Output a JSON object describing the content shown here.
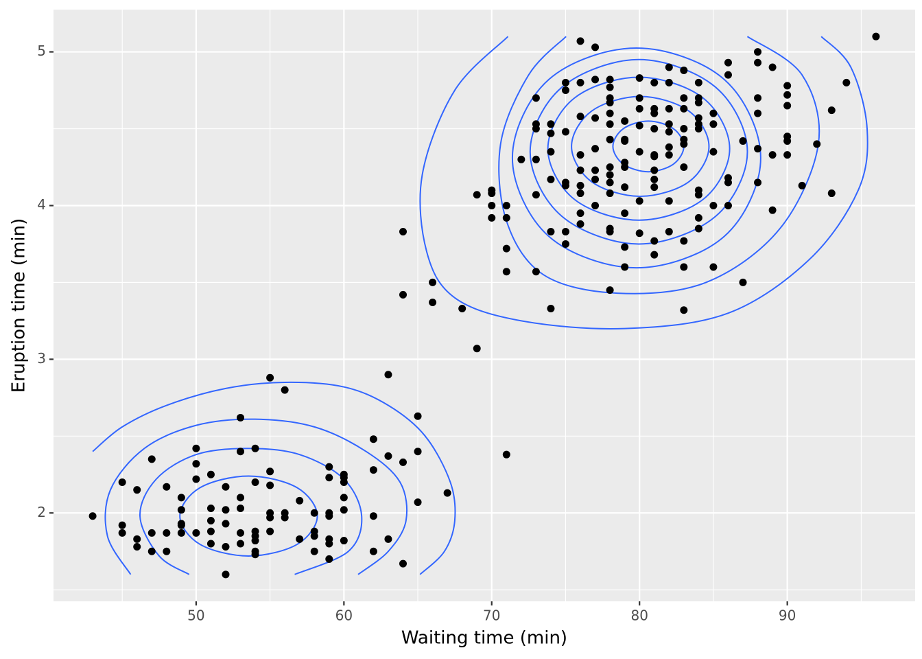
{
  "chart_data": {
    "type": "scatter",
    "xlabel": "Waiting time (min)",
    "ylabel": "Eruption time (min)",
    "xlim": [
      40.35,
      98.65
    ],
    "ylim": [
      1.425,
      5.275
    ],
    "xticks": [
      50,
      60,
      70,
      80,
      90
    ],
    "yticks": [
      2,
      3,
      4,
      5
    ],
    "xminorticks": [
      45,
      55,
      65,
      75,
      85,
      95
    ],
    "yminorticks": [
      1.5,
      2.5,
      3.5,
      4.5
    ],
    "grid": true,
    "color": "#000000",
    "contour_color": "#3366ff",
    "x": [
      43,
      45,
      45,
      45,
      46,
      46,
      46,
      47,
      47,
      47,
      48,
      48,
      48,
      49,
      49,
      49,
      49,
      49,
      50,
      50,
      50,
      50,
      51,
      51,
      51,
      51,
      51,
      52,
      52,
      52,
      52,
      52,
      53,
      53,
      53,
      53,
      53,
      53,
      54,
      54,
      54,
      54,
      54,
      54,
      54,
      55,
      55,
      55,
      55,
      55,
      55,
      56,
      56,
      56,
      57,
      57,
      58,
      58,
      58,
      58,
      59,
      59,
      59,
      59,
      59,
      59,
      59,
      60,
      60,
      60,
      60,
      60,
      60,
      62,
      62,
      62,
      62,
      63,
      63,
      63,
      64,
      64,
      65,
      65,
      65,
      67,
      71,
      64,
      64,
      66,
      66,
      68,
      69,
      69,
      70,
      70,
      70,
      70,
      71,
      71,
      71,
      71,
      72,
      73,
      73,
      73,
      73,
      73,
      73,
      74,
      74,
      74,
      74,
      74,
      74,
      75,
      75,
      75,
      75,
      75,
      75,
      75,
      76,
      76,
      76,
      76,
      76,
      76,
      76,
      76,
      76,
      77,
      77,
      77,
      77,
      77,
      77,
      77,
      78,
      78,
      78,
      78,
      78,
      78,
      78,
      78,
      78,
      78,
      78,
      78,
      78,
      78,
      79,
      79,
      79,
      79,
      79,
      79,
      79,
      79,
      79,
      80,
      80,
      80,
      80,
      80,
      80,
      80,
      81,
      81,
      81,
      81,
      81,
      81,
      81,
      81,
      81,
      81,
      81,
      82,
      82,
      82,
      82,
      82,
      82,
      82,
      82,
      82,
      83,
      83,
      83,
      83,
      83,
      83,
      83,
      83,
      83,
      83,
      84,
      84,
      84,
      84,
      84,
      84,
      84,
      84,
      84,
      84,
      85,
      85,
      85,
      85,
      85,
      86,
      86,
      86,
      86,
      86,
      87,
      87,
      88,
      88,
      88,
      88,
      88,
      88,
      89,
      89,
      89,
      90,
      90,
      90,
      90,
      90,
      90,
      91,
      92,
      93,
      93,
      94,
      96
    ],
    "values": [
      1.98,
      2.2,
      1.92,
      1.87,
      2.15,
      1.83,
      1.78,
      2.35,
      1.87,
      1.75,
      2.17,
      1.87,
      1.75,
      2.1,
      2.02,
      1.93,
      1.92,
      1.87,
      2.42,
      2.32,
      2.22,
      1.87,
      2.25,
      2.03,
      1.95,
      1.88,
      1.8,
      2.17,
      2.02,
      1.93,
      1.78,
      1.6,
      2.62,
      2.4,
      2.1,
      2.03,
      1.87,
      1.8,
      2.42,
      2.2,
      1.88,
      1.85,
      1.82,
      1.75,
      1.73,
      2.88,
      2.27,
      2.18,
      2.0,
      1.97,
      1.88,
      2.8,
      2.0,
      1.97,
      2.08,
      1.83,
      2.0,
      1.88,
      1.85,
      1.75,
      2.3,
      2.23,
      2.0,
      1.98,
      1.83,
      1.8,
      1.7,
      2.25,
      2.23,
      2.2,
      2.1,
      2.02,
      1.82,
      2.48,
      2.28,
      1.98,
      1.75,
      2.9,
      2.37,
      1.83,
      2.33,
      1.67,
      2.63,
      2.4,
      2.07,
      2.13,
      2.38,
      3.83,
      3.42,
      3.5,
      3.37,
      3.33,
      3.07,
      4.07,
      4.1,
      4.08,
      4.0,
      3.92,
      4.0,
      3.92,
      3.72,
      3.57,
      4.3,
      4.7,
      4.53,
      4.5,
      4.3,
      4.07,
      3.57,
      4.53,
      4.47,
      4.35,
      4.17,
      3.83,
      3.33,
      4.8,
      4.75,
      4.48,
      4.15,
      4.13,
      3.83,
      3.75,
      5.07,
      4.8,
      4.58,
      4.33,
      4.23,
      4.13,
      4.08,
      3.95,
      3.88,
      5.03,
      4.82,
      4.57,
      4.37,
      4.23,
      4.17,
      4.0,
      4.82,
      4.77,
      4.7,
      4.67,
      4.6,
      4.53,
      4.43,
      4.25,
      4.2,
      4.15,
      4.08,
      3.85,
      3.83,
      3.45,
      4.55,
      4.43,
      4.42,
      4.28,
      4.25,
      4.12,
      3.95,
      3.73,
      3.6,
      4.83,
      4.7,
      4.63,
      4.52,
      4.35,
      4.03,
      3.82,
      4.8,
      4.63,
      4.6,
      4.5,
      4.33,
      4.32,
      4.23,
      4.17,
      4.12,
      3.77,
      3.68,
      4.9,
      4.8,
      4.63,
      4.53,
      4.48,
      4.38,
      4.33,
      4.03,
      3.83,
      4.88,
      4.7,
      4.63,
      4.5,
      4.43,
      4.4,
      4.25,
      3.77,
      3.6,
      3.32,
      4.8,
      4.7,
      4.67,
      4.57,
      4.53,
      4.5,
      4.1,
      4.07,
      3.92,
      3.85,
      4.6,
      4.53,
      4.35,
      4.0,
      3.6,
      4.93,
      4.85,
      4.18,
      4.15,
      4.0,
      4.42,
      3.5,
      5.0,
      4.93,
      4.7,
      4.6,
      4.37,
      4.15,
      4.9,
      4.33,
      3.97,
      4.78,
      4.72,
      4.65,
      4.45,
      4.42,
      4.33,
      4.13,
      4.4,
      4.62,
      4.08,
      4.8,
      5.1
    ],
    "contours": [
      {
        "closed": true,
        "x": [
          83,
          82.3,
          80.6,
          78.9,
          78.2,
          78.9,
          80.6,
          82.3
        ],
        "y": [
          4.385,
          4.5,
          4.55,
          4.5,
          4.385,
          4.27,
          4.22,
          4.27
        ]
      },
      {
        "closed": true,
        "x": [
          84.7,
          83.34,
          80.05,
          76.76,
          75.4,
          76.76,
          80.05,
          83.34
        ],
        "y": [
          4.385,
          4.615,
          4.71,
          4.615,
          4.385,
          4.155,
          4.06,
          4.155
        ]
      },
      {
        "closed": true,
        "x": [
          86.1,
          84.3,
          79.95,
          75.6,
          73.8,
          75.6,
          79.95,
          84.3
        ],
        "y": [
          4.37,
          4.7,
          4.835,
          4.7,
          4.37,
          4.04,
          3.905,
          4.04
        ]
      },
      {
        "closed": true,
        "x": [
          87.3,
          85.15,
          79.95,
          74.75,
          72.6,
          74.75,
          79.95,
          85.15
        ],
        "y": [
          4.35,
          4.77,
          4.95,
          4.77,
          4.35,
          3.93,
          3.75,
          3.93
        ]
      },
      {
        "closed": true,
        "x": [
          88.2,
          85.74,
          79.8,
          73.86,
          71.4,
          73.86,
          79.8,
          85.74
        ],
        "y": [
          4.31,
          4.82,
          5.025,
          4.82,
          4.31,
          3.8,
          3.595,
          3.8
        ]
      },
      {
        "closed": false,
        "x": [
          75.03,
          72.5,
          70.6,
          71,
          73.5,
          78.5,
          84.5,
          89.5,
          92.1,
          91,
          87.3
        ],
        "y": [
          5.1,
          4.85,
          4.4,
          3.9,
          3.55,
          3.43,
          3.5,
          3.85,
          4.4,
          4.85,
          5.1
        ]
      },
      {
        "closed": false,
        "x": [
          71.1,
          67.5,
          65.3,
          65.6,
          67.5,
          72,
          79,
          86,
          91.5,
          94.8,
          95.4,
          94.3,
          92.3
        ],
        "y": [
          5.1,
          4.75,
          4.2,
          3.7,
          3.4,
          3.25,
          3.2,
          3.3,
          3.65,
          4.1,
          4.5,
          4.9,
          5.1
        ]
      },
      {
        "closed": true,
        "x": [
          58.2,
          56.84,
          53.55,
          50.26,
          48.9,
          50.26,
          53.55,
          56.84
        ],
        "y": [
          1.98,
          2.164,
          2.24,
          2.164,
          1.98,
          1.796,
          1.72,
          1.796
        ]
      },
      {
        "closed": false,
        "x": [
          49.53,
          47.5,
          46.2,
          47.3,
          50,
          53.5,
          57,
          60,
          61.2,
          60.3,
          56.67
        ],
        "y": [
          1.6,
          1.72,
          1.98,
          2.22,
          2.38,
          2.42,
          2.38,
          2.22,
          1.98,
          1.75,
          1.6
        ]
      },
      {
        "closed": false,
        "x": [
          45.57,
          44,
          44.2,
          46.5,
          50,
          54,
          58,
          61.5,
          63.8,
          64.2,
          63,
          60.96
        ],
        "y": [
          1.6,
          1.85,
          2.15,
          2.42,
          2.57,
          2.61,
          2.56,
          2.4,
          2.2,
          1.95,
          1.75,
          1.6
        ]
      },
      {
        "closed": false,
        "x": [
          43,
          45,
          48,
          52,
          56,
          60,
          63,
          65.5,
          67.2,
          67.5,
          66.8,
          65.15
        ],
        "y": [
          2.4,
          2.56,
          2.7,
          2.81,
          2.85,
          2.82,
          2.7,
          2.5,
          2.2,
          1.95,
          1.75,
          1.6
        ]
      }
    ]
  }
}
